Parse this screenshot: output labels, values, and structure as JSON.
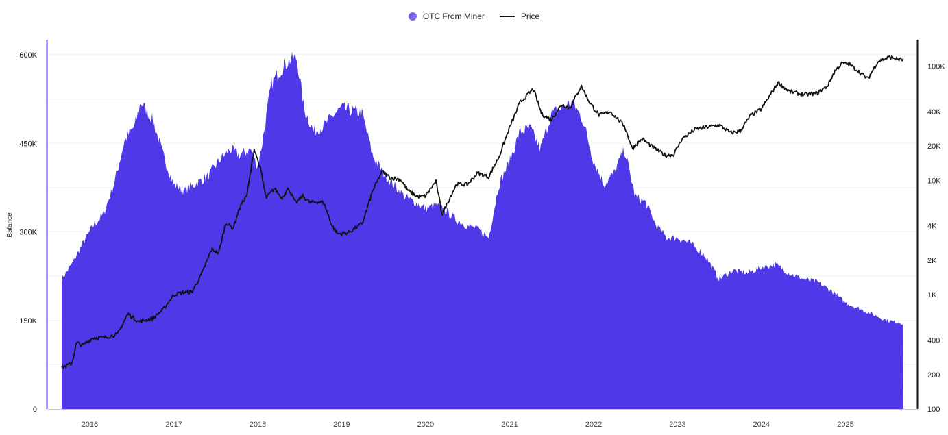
{
  "colors": {
    "area": "#4f38e8",
    "price": "#111111",
    "left_axis": "#5b43e6",
    "right_axis": "#111111",
    "grid": "#efeff4"
  },
  "legend": [
    {
      "name": "OTC From Miner",
      "marker": "dot",
      "color": "#7b66e8"
    },
    {
      "name": "Price",
      "marker": "line",
      "color": "#111111"
    }
  ],
  "chart_data": {
    "type": "area",
    "title": "",
    "left_axis": {
      "label": "Balance",
      "range": [
        0,
        600000
      ],
      "ticks": [
        0,
        150000,
        300000,
        450000,
        600000
      ],
      "tick_labels": [
        "0",
        "150K",
        "300K",
        "450K",
        "600K"
      ]
    },
    "right_axis": {
      "label": "",
      "scale": "log",
      "range": [
        100,
        150000
      ],
      "ticks": [
        100,
        200,
        400,
        1000,
        2000,
        4000,
        10000,
        20000,
        40000,
        100000
      ],
      "tick_labels": [
        "100",
        "200",
        "400",
        "1K",
        "2K",
        "4K",
        "10K",
        "20K",
        "40K",
        "100K"
      ]
    },
    "x_axis": {
      "range": [
        "2015-09-01",
        "2025-09-10"
      ],
      "tick_labels": [
        "2016",
        "2017",
        "2018",
        "2019",
        "2020",
        "2021",
        "2022",
        "2023",
        "2024",
        "2025"
      ],
      "tick_positions": [
        "2016-01-01",
        "2017-01-01",
        "2018-01-01",
        "2019-01-01",
        "2020-01-01",
        "2021-01-01",
        "2022-01-01",
        "2023-01-01",
        "2024-01-01",
        "2025-01-01"
      ]
    },
    "grid": true,
    "legend_position": "top-center",
    "series": [
      {
        "name": "OTC From Miner",
        "axis": "left",
        "kind": "area",
        "x": [
          "2015-09-01",
          "2015-10-15",
          "2015-12-01",
          "2016-01-15",
          "2016-03-01",
          "2016-04-15",
          "2016-06-01",
          "2016-07-15",
          "2016-08-10",
          "2016-10-01",
          "2016-11-15",
          "2017-01-01",
          "2017-02-15",
          "2017-04-01",
          "2017-06-01",
          "2017-07-15",
          "2017-09-01",
          "2017-10-15",
          "2017-12-01",
          "2017-12-31",
          "2018-01-20",
          "2018-03-01",
          "2018-04-01",
          "2018-05-15",
          "2018-06-20",
          "2018-07-20",
          "2018-09-01",
          "2018-10-15",
          "2018-12-01",
          "2019-01-01",
          "2019-02-15",
          "2019-04-01",
          "2019-05-15",
          "2019-07-01",
          "2019-08-15",
          "2019-10-01",
          "2019-11-15",
          "2020-01-01",
          "2020-02-15",
          "2020-04-01",
          "2020-05-15",
          "2020-07-01",
          "2020-08-15",
          "2020-10-01",
          "2020-11-15",
          "2021-01-01",
          "2021-02-15",
          "2021-04-01",
          "2021-05-15",
          "2021-07-01",
          "2021-08-15",
          "2021-10-01",
          "2021-11-15",
          "2022-01-01",
          "2022-02-15",
          "2022-04-01",
          "2022-05-15",
          "2022-07-01",
          "2022-08-15",
          "2022-10-01",
          "2022-11-15",
          "2023-01-01",
          "2023-03-01",
          "2023-05-01",
          "2023-07-01",
          "2023-09-01",
          "2023-11-01",
          "2024-01-01",
          "2024-03-01",
          "2024-05-01",
          "2024-07-01",
          "2024-09-01",
          "2024-11-01",
          "2025-01-01",
          "2025-03-01",
          "2025-05-01",
          "2025-07-01",
          "2025-09-10"
        ],
        "values": [
          220000,
          245000,
          280000,
          310000,
          330000,
          380000,
          455000,
          480000,
          520000,
          490000,
          430000,
          380000,
          370000,
          380000,
          395000,
          420000,
          440000,
          430000,
          440000,
          410000,
          450000,
          550000,
          570000,
          590000,
          595000,
          510000,
          470000,
          480000,
          500000,
          510000,
          505000,
          500000,
          430000,
          400000,
          380000,
          360000,
          350000,
          340000,
          345000,
          335000,
          320000,
          310000,
          305000,
          290000,
          380000,
          420000,
          470000,
          475000,
          440000,
          500000,
          510000,
          520000,
          490000,
          420000,
          380000,
          400000,
          440000,
          360000,
          350000,
          310000,
          290000,
          290000,
          280000,
          260000,
          220000,
          235000,
          230000,
          240000,
          245000,
          230000,
          220000,
          215000,
          200000,
          180000,
          170000,
          160000,
          150000,
          145000
        ]
      },
      {
        "name": "Price",
        "axis": "right",
        "kind": "line",
        "x": [
          "2015-09-01",
          "2015-10-15",
          "2015-11-05",
          "2015-12-01",
          "2016-01-15",
          "2016-03-01",
          "2016-05-01",
          "2016-06-15",
          "2016-08-01",
          "2016-10-01",
          "2016-11-15",
          "2017-01-01",
          "2017-02-15",
          "2017-03-20",
          "2017-05-01",
          "2017-06-15",
          "2017-07-15",
          "2017-08-15",
          "2017-09-15",
          "2017-10-15",
          "2017-11-15",
          "2017-12-17",
          "2018-01-15",
          "2018-02-06",
          "2018-03-15",
          "2018-04-15",
          "2018-05-15",
          "2018-06-15",
          "2018-07-15",
          "2018-08-15",
          "2018-09-15",
          "2018-10-15",
          "2018-11-20",
          "2018-12-15",
          "2019-02-01",
          "2019-04-01",
          "2019-05-15",
          "2019-06-26",
          "2019-08-01",
          "2019-09-15",
          "2019-10-15",
          "2019-11-25",
          "2020-01-01",
          "2020-02-15",
          "2020-03-13",
          "2020-04-15",
          "2020-05-15",
          "2020-07-01",
          "2020-08-15",
          "2020-10-01",
          "2020-11-15",
          "2021-01-01",
          "2021-02-15",
          "2021-04-14",
          "2021-05-20",
          "2021-07-01",
          "2021-08-15",
          "2021-09-20",
          "2021-11-08",
          "2021-12-15",
          "2022-01-25",
          "2022-03-15",
          "2022-05-15",
          "2022-06-18",
          "2022-08-01",
          "2022-09-15",
          "2022-11-10",
          "2022-12-15",
          "2023-01-20",
          "2023-03-20",
          "2023-05-01",
          "2023-07-01",
          "2023-08-20",
          "2023-10-01",
          "2023-11-15",
          "2024-01-01",
          "2024-03-14",
          "2024-05-01",
          "2024-07-05",
          "2024-09-01",
          "2024-10-15",
          "2024-11-15",
          "2024-12-17",
          "2025-01-20",
          "2025-03-10",
          "2025-04-08",
          "2025-05-22",
          "2025-07-14",
          "2025-08-15",
          "2025-09-10"
        ],
        "values": [
          230,
          250,
          380,
          360,
          420,
          420,
          450,
          680,
          580,
          620,
          740,
          1000,
          1050,
          1050,
          1500,
          2500,
          2300,
          4300,
          3800,
          5800,
          7500,
          19000,
          12000,
          7000,
          8500,
          7000,
          8500,
          6300,
          7300,
          6400,
          6500,
          6400,
          4000,
          3400,
          3500,
          4200,
          8000,
          12000,
          10500,
          10200,
          8200,
          7200,
          7300,
          9800,
          5000,
          7000,
          9300,
          9200,
          11600,
          10700,
          16000,
          29000,
          48000,
          63000,
          38000,
          34000,
          46000,
          43000,
          67000,
          48000,
          37000,
          40000,
          30000,
          19000,
          23000,
          19500,
          16500,
          16800,
          23000,
          28000,
          29000,
          30500,
          26000,
          27000,
          37000,
          42000,
          72000,
          60000,
          56000,
          58000,
          67000,
          90000,
          106000,
          103000,
          86000,
          77000,
          110000,
          120000,
          115000,
          113000
        ]
      }
    ]
  }
}
